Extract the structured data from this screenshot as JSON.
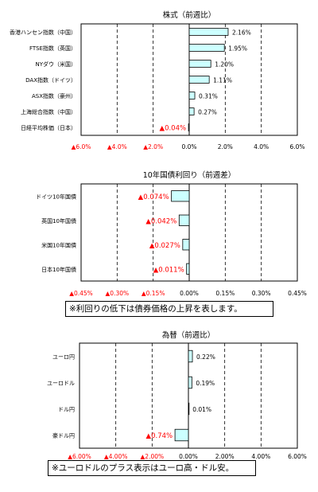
{
  "colors": {
    "bar_fill": "#ccffff",
    "bar_stroke": "#000000",
    "negative_text": "#ff0000",
    "positive_text": "#000000"
  },
  "notes": {
    "yields": "※利回りの低下は債券価格の上昇を表します。",
    "fx": "※ユーロドルのプラス表示はユーロ高・ドル安。"
  },
  "chart_data": [
    {
      "type": "bar",
      "orientation": "horizontal",
      "title": "株式（前週比）",
      "categories": [
        "香港ハンセン指数（中国）",
        "FTSE指数（英国）",
        "NYダウ（米国）",
        "DAX指数（ドイツ）",
        "ASX指数（豪州）",
        "上海総合指数（中国）",
        "日経平均株価（日本）"
      ],
      "values": [
        2.16,
        1.95,
        1.2,
        1.11,
        0.31,
        0.27,
        -0.04
      ],
      "value_labels": [
        "2.16%",
        "1.95%",
        "1.20%",
        "1.11%",
        "0.31%",
        "0.27%",
        "▲0.04%"
      ],
      "xlim": [
        -6,
        6
      ],
      "ticks": [
        -6,
        -4,
        -2,
        0,
        2,
        4,
        6
      ],
      "tick_labels": [
        "▲6.0%",
        "▲4.0%",
        "▲2.0%",
        "0.0%",
        "2.0%",
        "4.0%",
        "6.0%"
      ],
      "grid": true
    },
    {
      "type": "bar",
      "orientation": "horizontal",
      "title": "10年国債利回り（前週差）",
      "categories": [
        "ドイツ10年国債",
        "英国10年国債",
        "米国10年国債",
        "日本10年国債"
      ],
      "values": [
        -0.074,
        -0.042,
        -0.027,
        -0.011
      ],
      "value_labels": [
        "▲0.074%",
        "▲0.042%",
        "▲0.027%",
        "▲0.011%"
      ],
      "xlim": [
        -0.45,
        0.45
      ],
      "ticks": [
        -0.45,
        -0.3,
        -0.15,
        0,
        0.15,
        0.3,
        0.45
      ],
      "tick_labels": [
        "▲0.45%",
        "▲0.30%",
        "▲0.15%",
        "0.00%",
        "0.15%",
        "0.30%",
        "0.45%"
      ],
      "grid": true
    },
    {
      "type": "bar",
      "orientation": "horizontal",
      "title": "為替（前週比）",
      "categories": [
        "ユーロ円",
        "ユーロドル",
        "ドル円",
        "豪ドル円"
      ],
      "values": [
        0.22,
        0.19,
        0.01,
        -0.74
      ],
      "value_labels": [
        "0.22%",
        "0.19%",
        "0.01%",
        "▲0.74%"
      ],
      "xlim": [
        -6,
        6
      ],
      "ticks": [
        -6,
        -4,
        -2,
        0,
        2,
        4,
        6
      ],
      "tick_labels": [
        "▲6.00%",
        "▲4.00%",
        "▲2.00%",
        "0.00%",
        "2.00%",
        "4.00%",
        "6.00%"
      ],
      "grid": true
    }
  ]
}
